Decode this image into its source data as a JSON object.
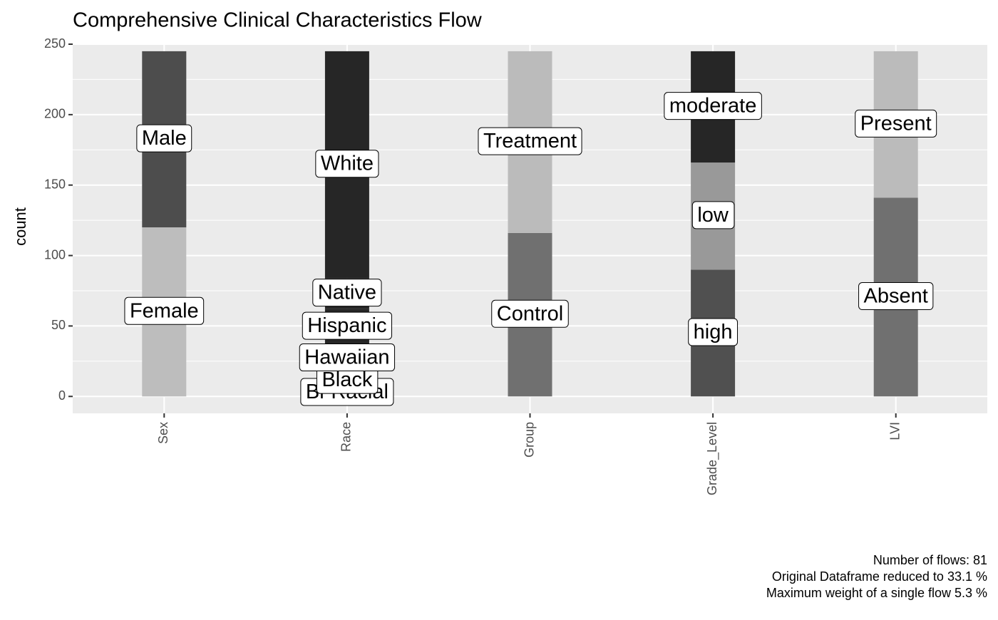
{
  "chart_data": {
    "type": "alluvial",
    "title": "Comprehensive Clinical Characteristics Flow",
    "y_label": "count",
    "ylim": [
      -12,
      250
    ],
    "yticks": [
      0,
      50,
      100,
      150,
      200,
      250
    ],
    "grid": true,
    "axes": [
      {
        "name": "Sex",
        "strata": [
          {
            "label": "Female",
            "value": 120,
            "color": "#bdbdbd"
          },
          {
            "label": "Male",
            "value": 125,
            "color": "#4d4d4d"
          }
        ]
      },
      {
        "name": "Race",
        "strata": [
          {
            "label": "Bi-Racial",
            "value": 5,
            "color": "#262626"
          },
          {
            "label": "Black",
            "value": 12,
            "color": "#262626"
          },
          {
            "label": "Hawaiian",
            "value": 20,
            "color": "#262626"
          },
          {
            "label": "Hispanic",
            "value": 25,
            "color": "#262626"
          },
          {
            "label": "Native",
            "value": 22,
            "color": "#262626"
          },
          {
            "label": "White",
            "value": 161,
            "color": "#262626"
          }
        ]
      },
      {
        "name": "Group",
        "strata": [
          {
            "label": "Control",
            "value": 116,
            "color": "#707070"
          },
          {
            "label": "Treatment",
            "value": 129,
            "color": "#bbbbbb"
          }
        ]
      },
      {
        "name": "Grade_Level",
        "strata": [
          {
            "label": "high",
            "value": 90,
            "color": "#505050"
          },
          {
            "label": "low",
            "value": 76,
            "color": "#999999"
          },
          {
            "label": "moderate",
            "value": 79,
            "color": "#262626"
          }
        ]
      },
      {
        "name": "LVI",
        "strata": [
          {
            "label": "Absent",
            "value": 141,
            "color": "#707070"
          },
          {
            "label": "Present",
            "value": 104,
            "color": "#bbbbbb"
          }
        ]
      }
    ],
    "caption": [
      "Number of flows: 81",
      "Original Dataframe reduced to 33.1 %",
      "Maximum weight of a single flow 5.3 %"
    ]
  }
}
